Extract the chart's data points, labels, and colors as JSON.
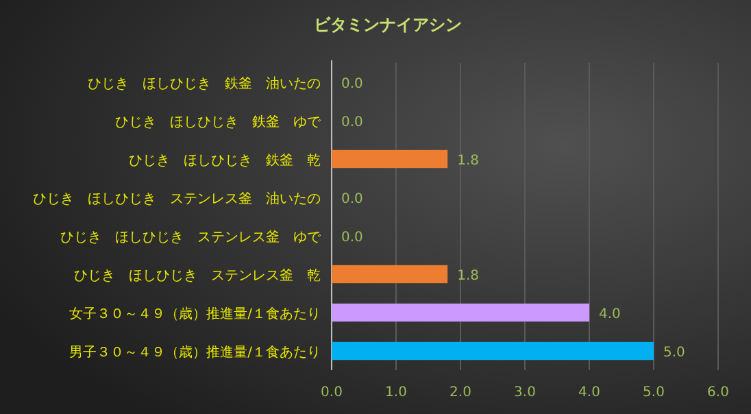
{
  "chart_data": {
    "type": "bar",
    "orientation": "horizontal",
    "title": "ビタミンナイアシン",
    "categories": [
      "ひじき　ほしひじき　鉄釜　油いたの",
      "ひじき　ほしひじき　鉄釜　ゆで",
      "ひじき　ほしひじき　鉄釜　乾",
      "ひじき　ほしひじき　ステンレス釜　油いたの",
      "ひじき　ほしひじき　ステンレス釜　ゆで",
      "ひじき　ほしひじき　ステンレス釜　乾",
      "女子３０～４９（歳）推進量/１食あたり",
      "男子３０～４９（歳）推進量/１食あたり"
    ],
    "values": [
      0,
      0,
      1.8,
      0,
      0,
      1.8,
      4,
      5
    ],
    "value_labels": [
      "0.0",
      "0.0",
      "1.8",
      "0.0",
      "0.0",
      "1.8",
      "4.0",
      "5.0"
    ],
    "colors": [
      "#ed7d31",
      "#ed7d31",
      "#ed7d31",
      "#ed7d31",
      "#ed7d31",
      "#ed7d31",
      "#cc99ff",
      "#00b0f0"
    ],
    "xlim": [
      0,
      6
    ],
    "xticks": [
      {
        "value": 0,
        "label": "0.0"
      },
      {
        "value": 1,
        "label": "1.0"
      },
      {
        "value": 2,
        "label": "2.0"
      },
      {
        "value": 3,
        "label": "3.0"
      },
      {
        "value": 4,
        "label": "4.0"
      },
      {
        "value": 5,
        "label": "5.0"
      },
      {
        "value": 6,
        "label": "6.0"
      }
    ],
    "grid": "x"
  }
}
